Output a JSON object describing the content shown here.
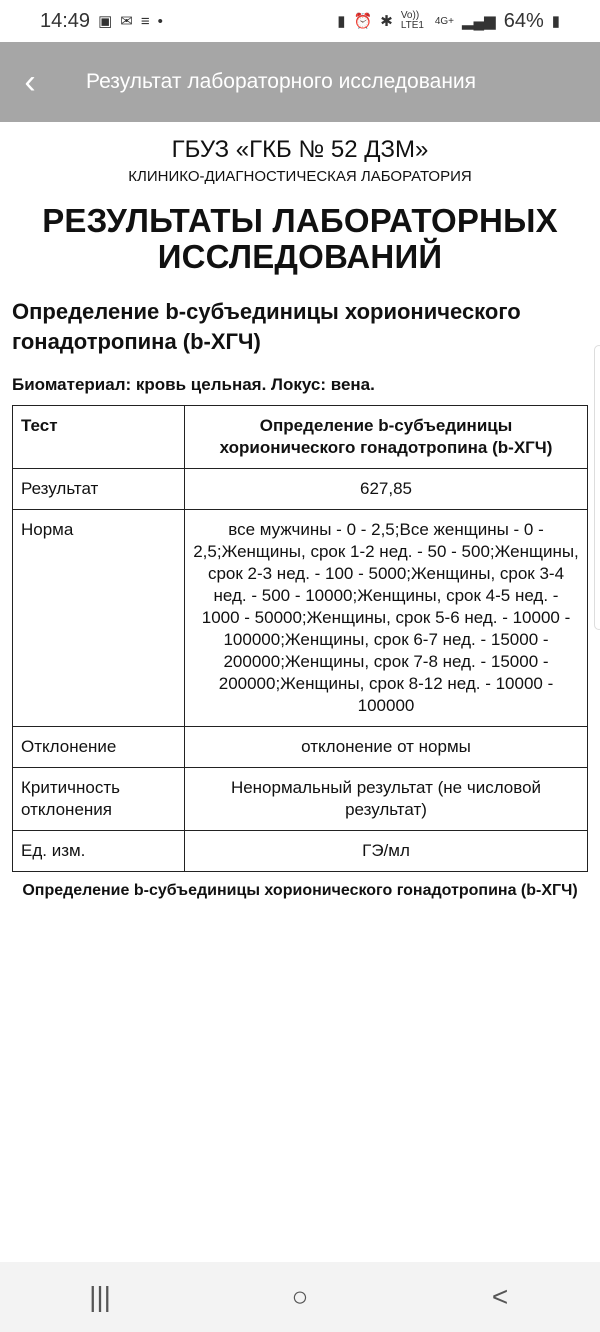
{
  "status_bar": {
    "time": "14:49",
    "battery": "64%",
    "network": "4G+",
    "volte": "Vo)) LTE1"
  },
  "app_bar": {
    "title": "Результат лабораторного исследования"
  },
  "document": {
    "org": "ГБУЗ «ГКБ № 52 ДЗМ»",
    "lab": "КЛИНИКО-ДИАГНОСТИЧЕСКАЯ ЛАБОРАТОРИЯ",
    "title": "РЕЗУЛЬТАТЫ ЛАБОРАТОРНЫХ ИССЛЕДОВАНИЙ",
    "test_name": "Определение b-субъединицы хорионического гонадотропина (b-ХГЧ)",
    "biomaterial": "Биоматериал: кровь цельная. Локус: вена.",
    "table": [
      {
        "k": "Тест",
        "v": "Определение b-субъединицы хорионического гонадотропина (b-ХГЧ)"
      },
      {
        "k": "Результат",
        "v": "627,85"
      },
      {
        "k": "Норма",
        "v": "все мужчины - 0 - 2,5;Все женщины - 0 - 2,5;Женщины, срок 1-2 нед. - 50 - 500;Женщины, срок 2-3 нед. - 100 - 5000;Женщины, срок 3-4 нед. - 500 - 10000;Женщины, срок 4-5 нед. - 1000 - 50000;Женщины, срок 5-6 нед. - 10000 - 100000;Женщины, срок 6-7 нед. - 15000 - 200000;Женщины, срок 7-8 нед. - 15000 - 200000;Женщины, срок 8-12 нед. - 10000 - 100000"
      },
      {
        "k": "Отклонение",
        "v": "отклонение от нормы"
      },
      {
        "k": "Критичность отклонения",
        "v": "Ненормальный результат (не числовой результат)"
      },
      {
        "k": "Ед. изм.",
        "v": "ГЭ/мл"
      }
    ],
    "footer": "Определение b-субъединицы хорионического гонадотропина (b-ХГЧ)"
  },
  "nav": {
    "recents": "|||",
    "home": "○",
    "back": "<"
  }
}
